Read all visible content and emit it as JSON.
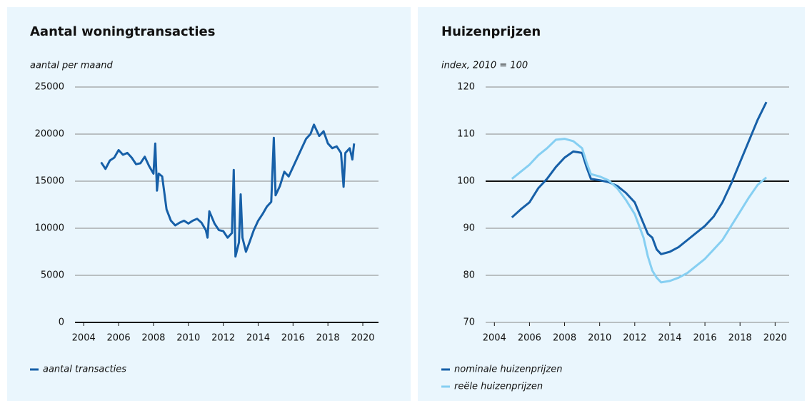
{
  "chart_data": [
    {
      "type": "line",
      "title": "Aantal woningtransacties",
      "y_label": "aantal per maand",
      "x": [
        2005,
        2005.25,
        2005.5,
        2005.75,
        2006,
        2006.25,
        2006.5,
        2006.75,
        2007,
        2007.25,
        2007.5,
        2007.75,
        2008,
        2008.1,
        2008.2,
        2008.3,
        2008.5,
        2008.75,
        2009,
        2009.25,
        2009.5,
        2009.75,
        2010,
        2010.25,
        2010.5,
        2010.75,
        2011,
        2011.1,
        2011.2,
        2011.5,
        2011.75,
        2012,
        2012.25,
        2012.5,
        2012.6,
        2012.7,
        2012.9,
        2013,
        2013.1,
        2013.3,
        2013.5,
        2013.75,
        2014,
        2014.25,
        2014.5,
        2014.75,
        2014.9,
        2015,
        2015.25,
        2015.5,
        2015.75,
        2016,
        2016.25,
        2016.5,
        2016.75,
        2017,
        2017.2,
        2017.5,
        2017.75,
        2018,
        2018.25,
        2018.5,
        2018.75,
        2018.9,
        2019,
        2019.25,
        2019.4,
        2019.5
      ],
      "series": [
        {
          "name": "aantal transacties",
          "color": "#1760a8",
          "values": [
            17000,
            16300,
            17200,
            17500,
            18300,
            17800,
            18000,
            17500,
            16800,
            16900,
            17600,
            16600,
            15800,
            19000,
            14000,
            15800,
            15500,
            12000,
            10800,
            10300,
            10600,
            10800,
            10500,
            10800,
            11000,
            10600,
            9800,
            9000,
            11800,
            10500,
            9800,
            9700,
            9000,
            9500,
            16200,
            7000,
            8500,
            13600,
            9000,
            7500,
            8500,
            9800,
            10800,
            11500,
            12300,
            12800,
            19600,
            13500,
            14500,
            16000,
            15500,
            16500,
            17500,
            18500,
            19500,
            20000,
            21000,
            19800,
            20300,
            19000,
            18500,
            18700,
            18000,
            14400,
            18000,
            18500,
            17300,
            19000
          ]
        }
      ],
      "xlim": [
        2003.5,
        2020.9
      ],
      "xticks": [
        2004,
        2006,
        2008,
        2010,
        2012,
        2014,
        2016,
        2018,
        2020
      ],
      "ylim": [
        0,
        25000
      ],
      "yticks": [
        0,
        5000,
        10000,
        15000,
        20000,
        25000
      ],
      "grid": true,
      "reference_line": 0
    },
    {
      "type": "line",
      "title": "Huizenprijzen",
      "y_label": "index, 2010 = 100",
      "x": [
        2005,
        2005.5,
        2006,
        2006.5,
        2007,
        2007.5,
        2008,
        2008.5,
        2009,
        2009.25,
        2009.5,
        2010,
        2010.5,
        2011,
        2011.5,
        2012,
        2012.5,
        2012.75,
        2013,
        2013.25,
        2013.5,
        2014,
        2014.5,
        2015,
        2015.5,
        2016,
        2016.5,
        2017,
        2017.5,
        2018,
        2018.5,
        2019,
        2019.5
      ],
      "series": [
        {
          "name": "nominale huizenprijzen",
          "color": "#1760a8",
          "values": [
            92.3,
            94,
            95.5,
            98.5,
            100.5,
            103,
            105,
            106.3,
            106,
            103,
            100.5,
            100.2,
            99.8,
            99,
            97.5,
            95.5,
            91,
            88.8,
            88,
            85.5,
            84.5,
            85,
            86,
            87.5,
            89,
            90.5,
            92.5,
            95.5,
            99.5,
            104,
            108.5,
            113,
            116.8
          ]
        },
        {
          "name": "reële huizenprijzen",
          "color": "#86cff2",
          "values": [
            100.5,
            102,
            103.5,
            105.5,
            107,
            108.8,
            109,
            108.5,
            107,
            104,
            101.5,
            101,
            100.2,
            98.5,
            96,
            93,
            88,
            84,
            81,
            79.5,
            78.5,
            78.8,
            79.5,
            80.5,
            82,
            83.5,
            85.5,
            87.5,
            90.5,
            93.5,
            96.5,
            99.2,
            100.8
          ]
        }
      ],
      "xlim": [
        2003.5,
        2020.8
      ],
      "xticks": [
        2004,
        2006,
        2008,
        2010,
        2012,
        2014,
        2016,
        2018,
        2020
      ],
      "ylim": [
        70,
        120
      ],
      "yticks": [
        70,
        80,
        90,
        100,
        110,
        120
      ],
      "grid": true,
      "reference_line": 100
    }
  ]
}
